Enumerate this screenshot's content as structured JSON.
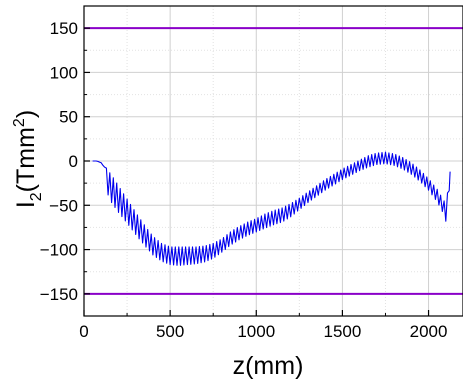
{
  "chart_data": {
    "type": "line",
    "xlabel": "z(mm)",
    "ylabel": {
      "base": "I",
      "sub": "2",
      "paren_open": "(Tmm",
      "sup": "2",
      "paren_close": ")"
    },
    "xlim": [
      0,
      2200
    ],
    "ylim": [
      -175,
      175
    ],
    "x_ticks": [
      0,
      500,
      1000,
      1500,
      2000
    ],
    "y_ticks": [
      -150,
      -100,
      -50,
      0,
      50,
      100,
      150
    ],
    "x_tick_labels": [
      "0",
      "500",
      "1000",
      "1500",
      "2000"
    ],
    "y_tick_labels": [
      "−150",
      "−100",
      "−50",
      "0",
      "50",
      "100",
      "150"
    ],
    "grid": true,
    "series": [
      {
        "color": "#0000ee",
        "oscillation_period_mm": 20,
        "envelope": {
          "z": [
            50,
            75,
            100,
            110,
            125,
            130,
            145,
            160,
            200,
            250,
            300,
            350,
            400,
            450,
            500,
            550,
            600,
            650,
            700,
            750,
            800,
            850,
            900,
            950,
            1000,
            1050,
            1100,
            1150,
            1200,
            1250,
            1300,
            1350,
            1400,
            1450,
            1500,
            1550,
            1600,
            1650,
            1700,
            1750,
            1800,
            1850,
            1900,
            1950,
            2000,
            2050,
            2080,
            2100,
            2115,
            2125
          ],
          "upper": [
            0,
            0,
            -2,
            -5,
            -8,
            -8,
            -12,
            -16,
            -28,
            -43,
            -58,
            -72,
            -85,
            -93,
            -97,
            -97,
            -97,
            -97,
            -96,
            -93,
            -88,
            -80,
            -74,
            -69,
            -65,
            -60,
            -56,
            -53,
            -48,
            -42,
            -35,
            -28,
            -21,
            -15,
            -9,
            -4,
            1,
            6,
            9,
            10,
            8,
            4,
            -2,
            -10,
            -20,
            -32,
            -42,
            -48,
            -30,
            -12
          ],
          "lower": [
            0,
            0,
            -2,
            -5,
            -8,
            -35,
            -40,
            -47,
            -58,
            -70,
            -83,
            -95,
            -106,
            -113,
            -117,
            -118,
            -117,
            -116,
            -114,
            -110,
            -103,
            -95,
            -89,
            -84,
            -80,
            -76,
            -72,
            -69,
            -63,
            -55,
            -47,
            -40,
            -33,
            -27,
            -21,
            -16,
            -11,
            -7,
            -4,
            -3,
            -5,
            -9,
            -15,
            -23,
            -33,
            -46,
            -57,
            -68,
            -55,
            -12
          ]
        }
      }
    ],
    "reference_lines": [
      {
        "y": 150,
        "color": "#8a00c8"
      },
      {
        "y": -150,
        "color": "#8a00c8"
      }
    ]
  }
}
